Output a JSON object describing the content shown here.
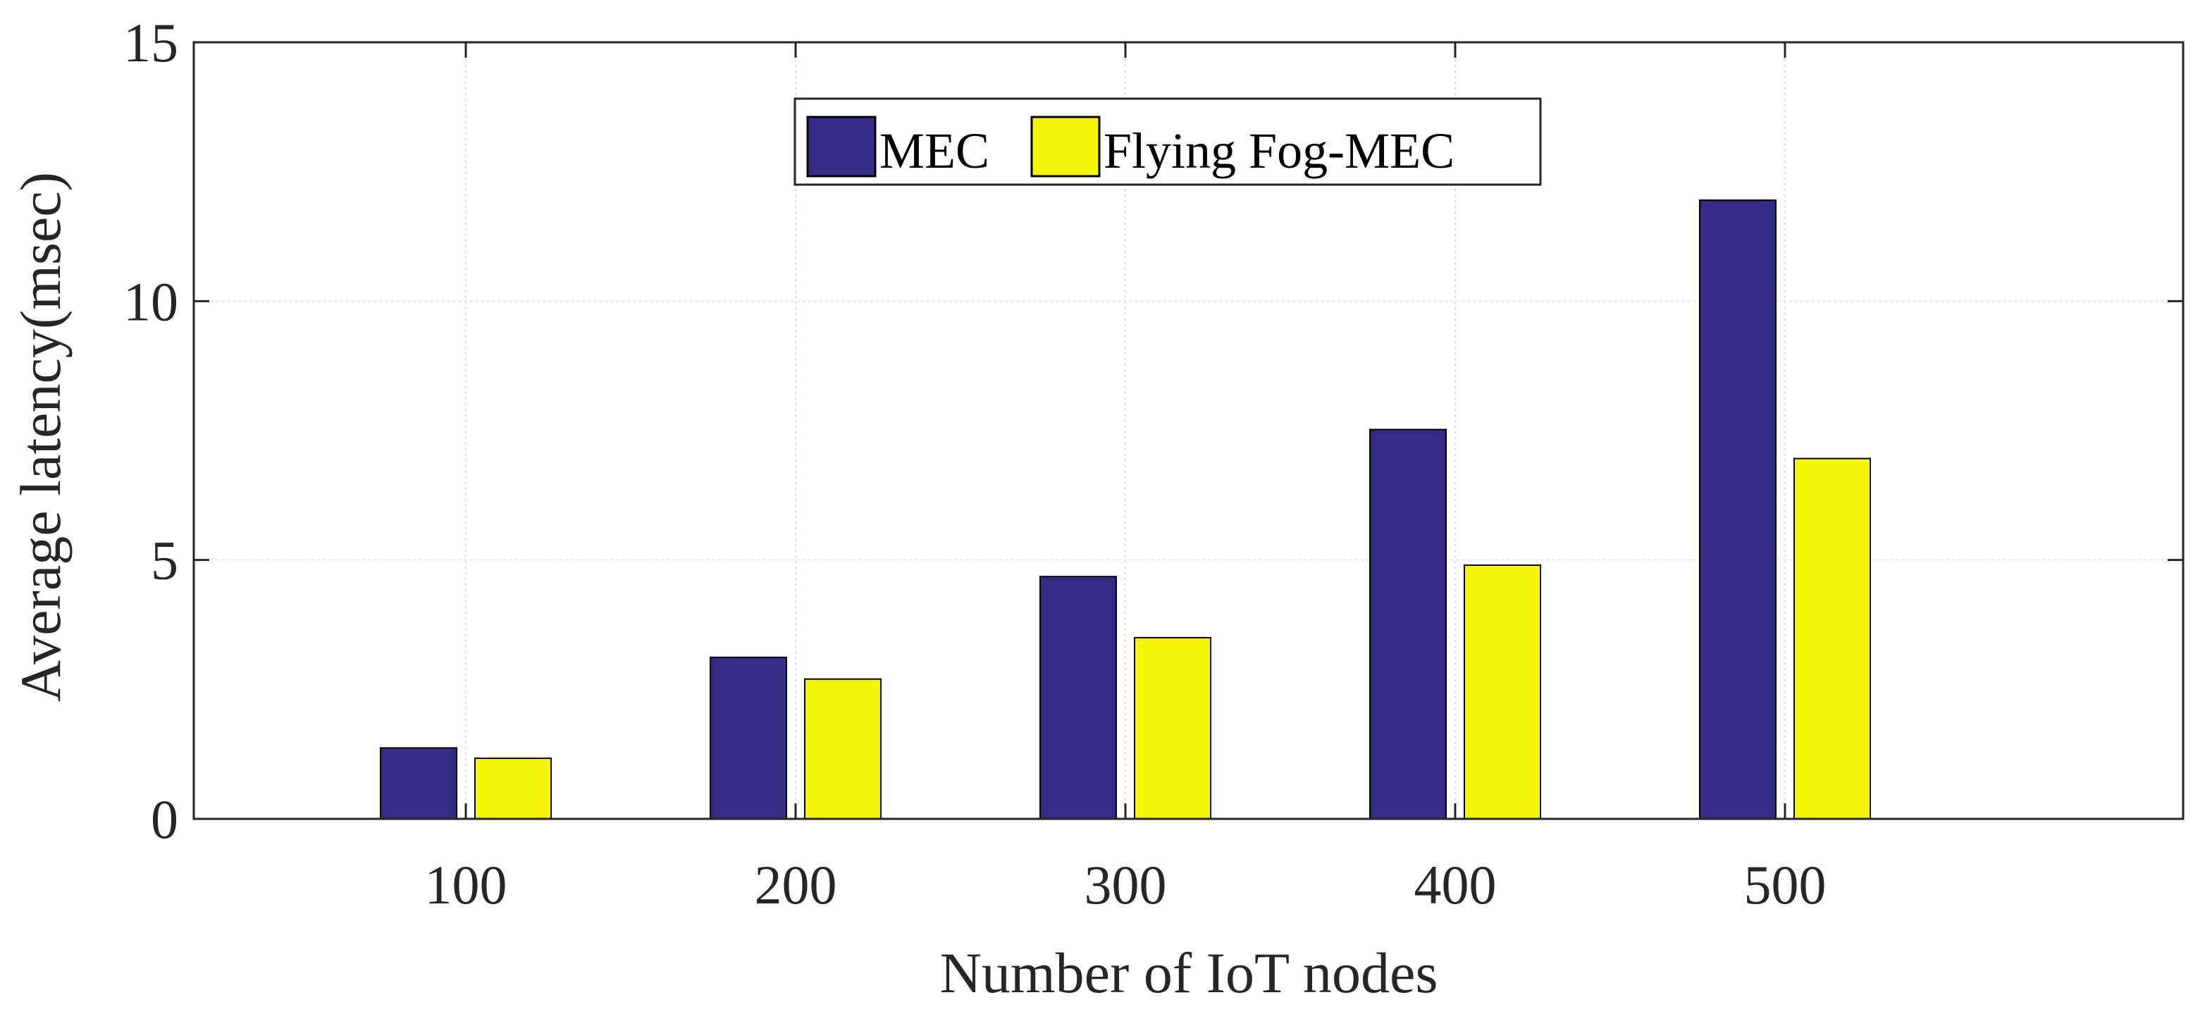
{
  "chart_data": {
    "type": "bar",
    "title": "",
    "categories": [
      "100",
      "200",
      "300",
      "400",
      "500"
    ],
    "series": [
      {
        "name": "MEC",
        "color": "#342b85",
        "values": [
          1.37,
          3.12,
          4.68,
          7.52,
          11.95
        ]
      },
      {
        "name": "Flying Fog-MEC",
        "color": "#f5f50a",
        "values": [
          1.17,
          2.7,
          3.5,
          4.9,
          6.96
        ]
      }
    ],
    "xlabel": "Number of IoT nodes",
    "ylabel": "Average latency(msec)",
    "ylim": [
      0,
      15
    ],
    "yticks": [
      0,
      5,
      10,
      15
    ],
    "grid": true,
    "legend": {
      "placement": "top-center",
      "orientation": "horizontal"
    }
  }
}
